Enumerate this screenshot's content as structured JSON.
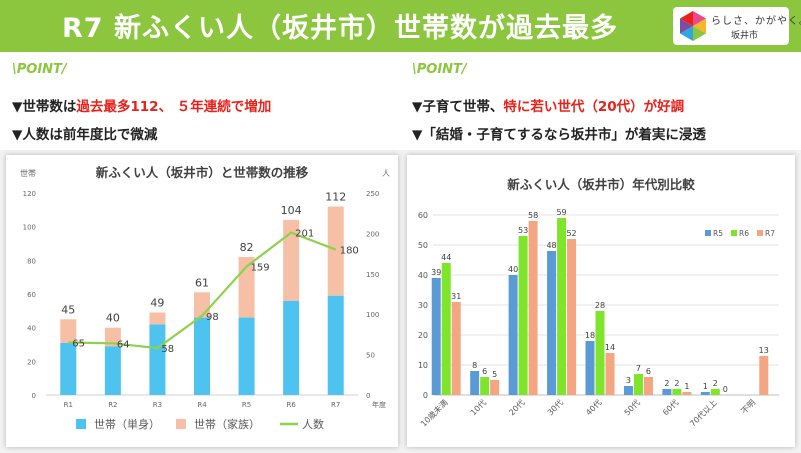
{
  "header": {
    "title": "R7 新ふくい人（坂井市）世帯数が過去最多",
    "logo_line1": "らしさ、かがやく。",
    "logo_line2": "坂井市"
  },
  "left_points": {
    "point_label": "\\POINT/",
    "line1_prefix": "▼世帯数は",
    "line1_highlight": "過去最多112、 ５年連続で増加",
    "line2": "▼人数は前年度比で微減"
  },
  "right_points": {
    "point_label": "\\POINT/",
    "line1_prefix": "▼子育て世帯、",
    "line1_highlight": "特に若い世代（20代）が好調",
    "line2": "▼「結婚・子育てするなら坂井市」が着実に浸透"
  },
  "chart_data": [
    {
      "type": "bar",
      "stacked": true,
      "title": "新ふくい人（坂井市）と世帯数の推移",
      "ylabel_left": "世帯",
      "ylabel_right": "人",
      "xlabel": "年度",
      "categories": [
        "R1",
        "R2",
        "R3",
        "R4",
        "R5",
        "R6",
        "R7"
      ],
      "series": [
        {
          "name": "世帯（単身）",
          "values": [
            31,
            29,
            42,
            46,
            46,
            56,
            59
          ],
          "color": "#4fc3ef"
        },
        {
          "name": "世帯（家族）",
          "values": [
            14,
            11,
            7,
            15,
            36,
            48,
            53
          ],
          "color": "#f5c0a6"
        },
        {
          "name": "人数",
          "type": "line",
          "axis": "right",
          "values": [
            65,
            64,
            58,
            98,
            159,
            201,
            180
          ],
          "color": "#8ed14a"
        }
      ],
      "totals": [
        45,
        40,
        49,
        61,
        82,
        104,
        112
      ],
      "ylim_left": [
        0,
        120
      ],
      "yticks_left": [
        0,
        20,
        40,
        60,
        80,
        100,
        120
      ],
      "ylim_right": [
        0,
        250
      ],
      "yticks_right": [
        0,
        50,
        100,
        150,
        200,
        250
      ],
      "legend_position": "bottom",
      "grid": false
    },
    {
      "type": "bar",
      "title": "新ふくい人（坂井市）年代別比較",
      "categories": [
        "10歳未満",
        "10代",
        "20代",
        "30代",
        "40代",
        "50代",
        "60代",
        "70代以上",
        "不明"
      ],
      "series": [
        {
          "name": "R5",
          "values": [
            39,
            8,
            40,
            48,
            18,
            3,
            2,
            1,
            0
          ],
          "color": "#5b9bd5"
        },
        {
          "name": "R6",
          "values": [
            44,
            6,
            53,
            59,
            28,
            7,
            2,
            2,
            0
          ],
          "color": "#7fe52a"
        },
        {
          "name": "R7",
          "values": [
            31,
            5,
            58,
            52,
            14,
            6,
            1,
            0,
            13
          ],
          "color": "#f4a582"
        }
      ],
      "labels": [
        [
          "39",
          "8",
          "40",
          "48",
          "18",
          "3",
          "2",
          "1",
          ""
        ],
        [
          "44",
          "6",
          "53",
          "59",
          "28",
          "7",
          "2",
          "2",
          ""
        ],
        [
          "31",
          "5",
          "58",
          "52",
          "14",
          "6",
          "1",
          "0",
          "13"
        ]
      ],
      "ylim": [
        0,
        60
      ],
      "yticks": [
        0,
        10,
        20,
        30,
        40,
        50,
        60
      ],
      "legend_position": "right",
      "grid": true
    }
  ]
}
